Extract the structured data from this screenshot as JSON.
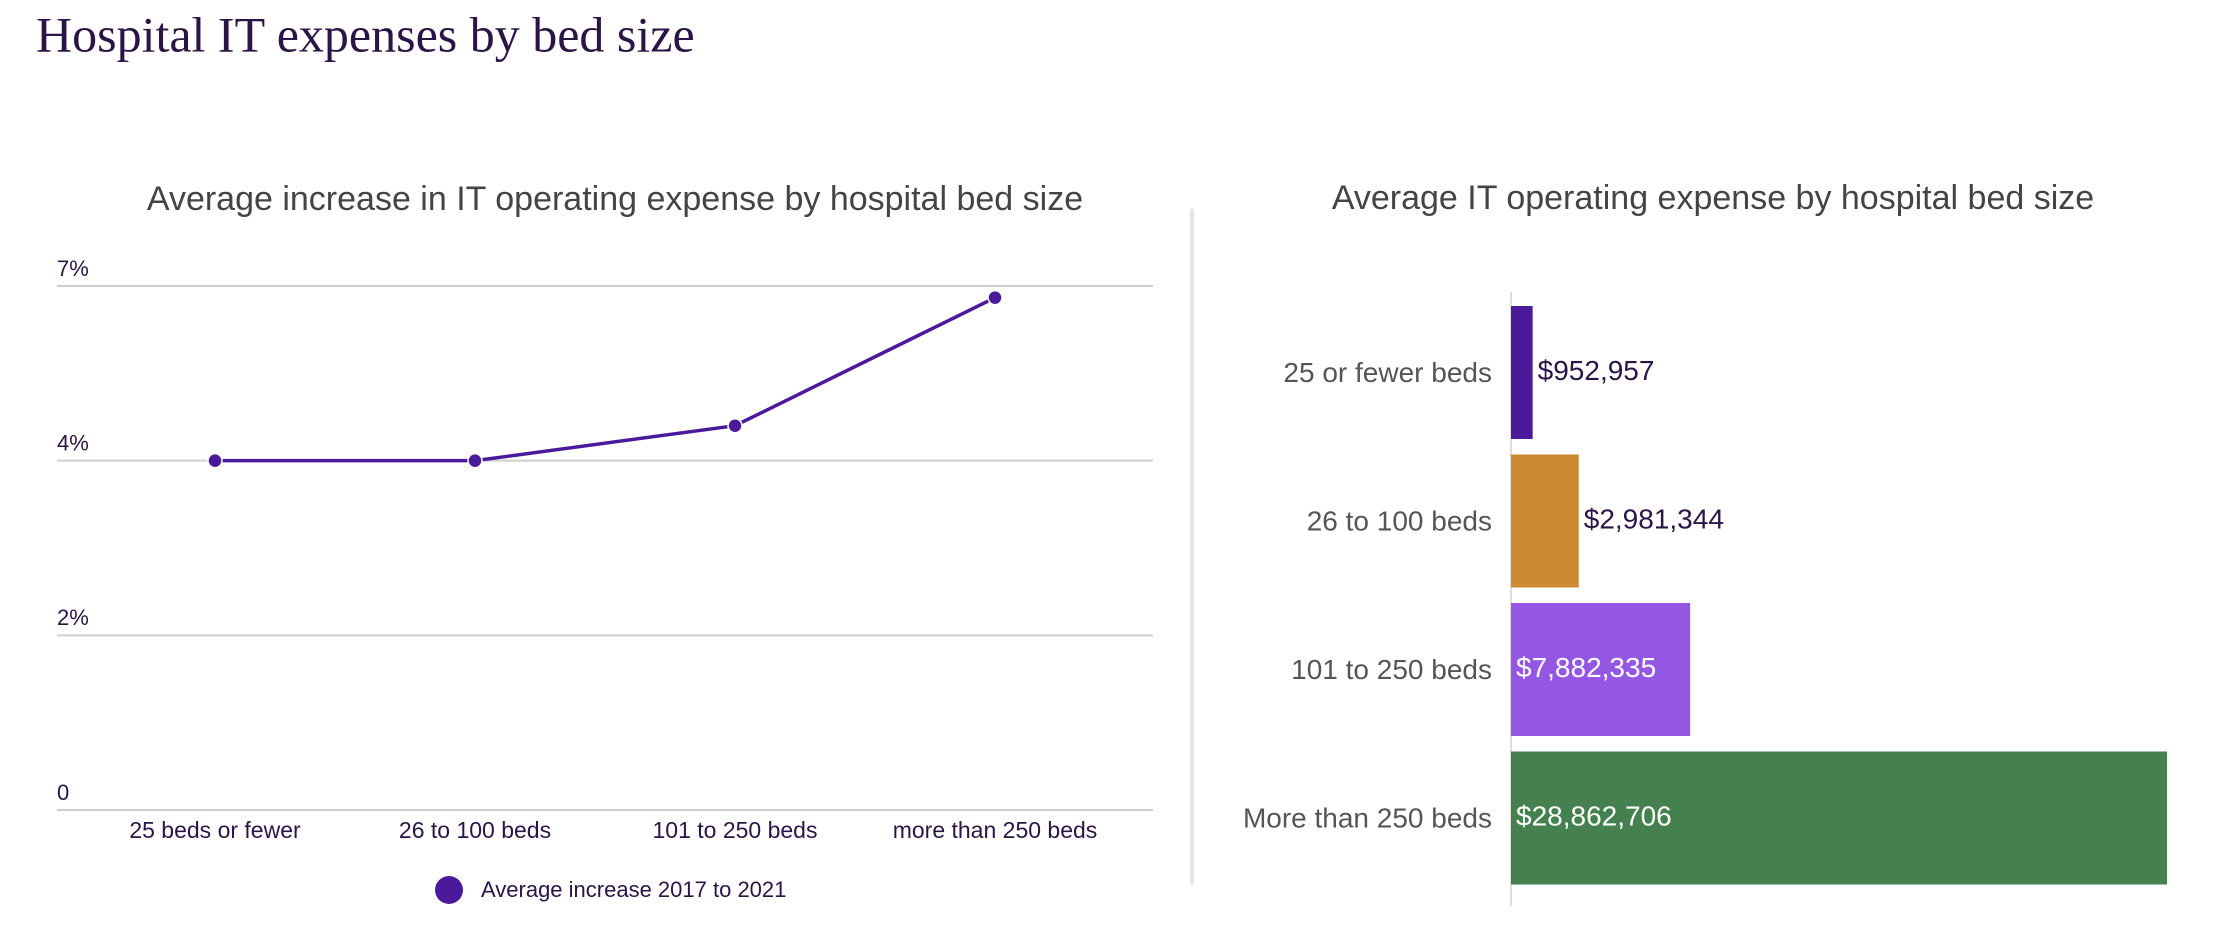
{
  "title": "Hospital IT expenses by bed size",
  "chart_data": [
    {
      "type": "line",
      "title": "Average increase in IT operating expense by hospital bed size",
      "categories": [
        "25 beds or fewer",
        "26 to 100 beds",
        "101 to 250 beds",
        "more than 250 beds"
      ],
      "series": [
        {
          "name": "Average increase 2017 to 2021",
          "color": "#4b1a9b",
          "values": [
            4,
            4,
            4.6,
            6.8
          ]
        }
      ],
      "ylim": [
        0,
        7
      ],
      "yticks": [
        0,
        {
          "value": 2,
          "label": "2%"
        },
        {
          "value": 4,
          "label": "4%"
        },
        {
          "value": 7,
          "label": "7%"
        }
      ],
      "grid": true,
      "legend": "bottom"
    },
    {
      "type": "barh",
      "title": "Average IT operating expense by hospital bed size",
      "categories": [
        "25 or fewer beds",
        "26 to 100 beds",
        "101 to 250 beds",
        "More than 250 beds"
      ],
      "values": [
        952957,
        2981344,
        7882335,
        28862706
      ],
      "value_labels": [
        "$952,957",
        "$2,981,344",
        "$7,882,335",
        "$28,862,706"
      ],
      "colors": [
        "#4b1a9b",
        "#cc8a33",
        "#9457e3",
        "#45814f"
      ]
    }
  ]
}
